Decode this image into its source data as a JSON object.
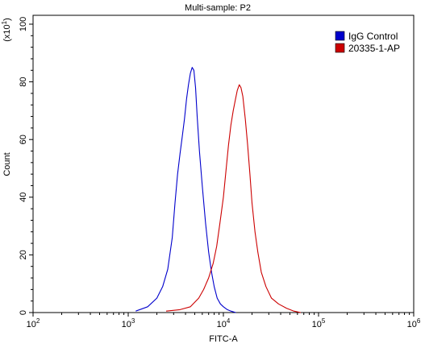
{
  "chart_data": {
    "type": "line",
    "title": "Multi-sample: P2",
    "xlabel": "FITC-A",
    "ylabel": "Count",
    "y_multiplier_label": "(x10",
    "y_multiplier_exp": "1",
    "x_scale": "log",
    "xlim": [
      100,
      1000000
    ],
    "ylim": [
      0,
      100
    ],
    "x_ticks": [
      {
        "value": 100,
        "base": "10",
        "exp": "2"
      },
      {
        "value": 1000,
        "base": "10",
        "exp": "3"
      },
      {
        "value": 10000,
        "base": "10",
        "exp": "4"
      },
      {
        "value": 100000,
        "base": "10",
        "exp": "5"
      },
      {
        "value": 1000000,
        "base": "10",
        "exp": "6"
      }
    ],
    "y_ticks": [
      0,
      20,
      40,
      60,
      80,
      100
    ],
    "grid": false,
    "legend_position": "top-right",
    "series": [
      {
        "name": "IgG Control",
        "color": "#0000cc",
        "x": [
          1200,
          1600,
          2000,
          2300,
          2600,
          2900,
          3100,
          3300,
          3500,
          3700,
          3900,
          4100,
          4300,
          4500,
          4700,
          4900,
          5100,
          5300,
          5600,
          6000,
          6500,
          7000,
          7500,
          8000,
          8600,
          9300,
          10000,
          11000,
          12000,
          13500
        ],
        "y": [
          0.5,
          2,
          5,
          9,
          15,
          26,
          38,
          48,
          55,
          61,
          67,
          74,
          79,
          83,
          85,
          84,
          78,
          68,
          56,
          44,
          31,
          21,
          14,
          9,
          5,
          3,
          2,
          1,
          0.5,
          0
        ]
      },
      {
        "name": "20335-1-AP",
        "color": "#cc0000",
        "x": [
          2500,
          3500,
          4500,
          5500,
          6200,
          7000,
          7800,
          8500,
          9200,
          10000,
          10700,
          11300,
          12000,
          12700,
          13400,
          14000,
          14700,
          15300,
          16000,
          17000,
          18000,
          19000,
          20000,
          21500,
          23000,
          25000,
          28000,
          32000,
          38000,
          46000,
          55000,
          65000
        ],
        "y": [
          0.5,
          1,
          2,
          5,
          8,
          12,
          17,
          23,
          31,
          40,
          50,
          58,
          65,
          70,
          74,
          77,
          79,
          78,
          75,
          67,
          58,
          48,
          38,
          28,
          21,
          14,
          9,
          5,
          3,
          1.5,
          0.5,
          0
        ]
      }
    ]
  }
}
